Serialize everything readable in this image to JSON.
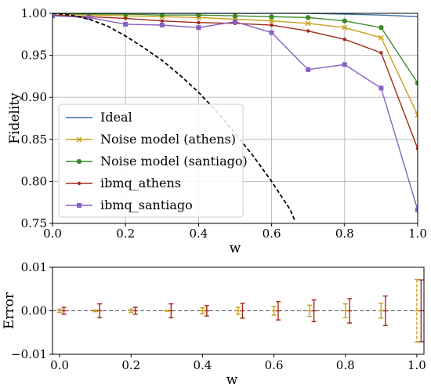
{
  "chart_data": [
    {
      "type": "line",
      "xlabel": "w",
      "ylabel": "Fidelity",
      "xlim": [
        0.0,
        1.0
      ],
      "ylim": [
        0.75,
        1.0
      ],
      "grid": true,
      "legend_position": "lower-left",
      "x_ticks": [
        "0.0",
        "0.2",
        "0.4",
        "0.6",
        "0.8",
        "1.0"
      ],
      "y_ticks": [
        "0.75",
        "0.80",
        "0.85",
        "0.90",
        "0.95",
        "1.00"
      ],
      "series": [
        {
          "name": "Ideal",
          "color": "#3a6fa8",
          "marker": "none",
          "x": [
            0.0,
            0.1,
            0.2,
            0.3,
            0.4,
            0.5,
            0.6,
            0.7,
            0.8,
            0.9,
            1.0
          ],
          "y": [
            1.0,
            1.0,
            1.0,
            1.0,
            1.0,
            1.0,
            1.0,
            1.0,
            0.999,
            0.998,
            0.996
          ]
        },
        {
          "name": "Noise model (athens)",
          "color": "#c8a018",
          "marker": "x",
          "x": [
            0.0,
            0.1,
            0.2,
            0.3,
            0.4,
            0.5,
            0.6,
            0.7,
            0.8,
            0.9,
            1.0
          ],
          "y": [
            1.0,
            0.998,
            0.997,
            0.996,
            0.995,
            0.993,
            0.991,
            0.988,
            0.983,
            0.971,
            0.879
          ]
        },
        {
          "name": "Noise model (santiago)",
          "color": "#3b8a2a",
          "marker": "circle",
          "x": [
            0.0,
            0.1,
            0.2,
            0.3,
            0.4,
            0.5,
            0.6,
            0.7,
            0.8,
            0.9,
            1.0
          ],
          "y": [
            1.0,
            0.999,
            0.999,
            0.998,
            0.998,
            0.997,
            0.996,
            0.995,
            0.991,
            0.983,
            0.917
          ]
        },
        {
          "name": "ibmq_athens",
          "color": "#a02a1a",
          "marker": "dot",
          "x": [
            0.0,
            0.1,
            0.2,
            0.3,
            0.4,
            0.5,
            0.6,
            0.7,
            0.8,
            0.9,
            1.0
          ],
          "y": [
            0.998,
            0.996,
            0.994,
            0.991,
            0.989,
            0.988,
            0.986,
            0.979,
            0.969,
            0.953,
            0.839
          ]
        },
        {
          "name": "ibmq_santiago",
          "color": "#8860c0",
          "marker": "square",
          "x": [
            0.0,
            0.1,
            0.2,
            0.3,
            0.4,
            0.5,
            0.6,
            0.7,
            0.8,
            0.9,
            1.0
          ],
          "y": [
            0.997,
            0.995,
            0.987,
            0.986,
            0.983,
            0.99,
            0.977,
            0.933,
            0.939,
            0.911,
            0.766
          ]
        },
        {
          "name": "",
          "color": "#000000",
          "marker": "none",
          "dashed": true,
          "x": [
            0.0,
            0.05,
            0.1,
            0.15,
            0.2,
            0.25,
            0.3,
            0.35,
            0.4,
            0.45,
            0.5,
            0.55,
            0.6,
            0.65,
            0.665
          ],
          "y": [
            1.0,
            0.998,
            0.993,
            0.985,
            0.973,
            0.959,
            0.944,
            0.926,
            0.906,
            0.883,
            0.857,
            0.83,
            0.8,
            0.767,
            0.752
          ]
        }
      ]
    },
    {
      "type": "errorbar",
      "xlabel": "w",
      "ylabel": "Error",
      "xlim": [
        -0.02,
        1.02
      ],
      "ylim": [
        -0.01,
        0.01
      ],
      "grid": false,
      "x_ticks": [
        "0.0",
        "0.2",
        "0.4",
        "0.6",
        "0.8",
        "1.0"
      ],
      "y_ticks": [
        "−0.01",
        "0.00",
        "0.01"
      ],
      "reference_line": 0.0,
      "series": [
        {
          "color": "#c8a018",
          "x": [
            0.0,
            0.1,
            0.2,
            0.3,
            0.4,
            0.5,
            0.6,
            0.7,
            0.8,
            0.9,
            1.0
          ],
          "y": [
            0,
            0,
            0,
            0,
            0,
            0,
            0,
            0,
            0,
            0,
            0
          ],
          "err": [
            0.0004,
            0.0002,
            0.0004,
            0.0001,
            0.0007,
            0.0008,
            0.001,
            0.0013,
            0.0016,
            0.0017,
            0.0072
          ]
        },
        {
          "color": "#a02a1a",
          "x": [
            0.0,
            0.1,
            0.2,
            0.3,
            0.4,
            0.5,
            0.6,
            0.7,
            0.8,
            0.9,
            1.0
          ],
          "y": [
            0,
            0,
            0,
            0,
            0,
            0,
            0,
            0,
            0,
            0,
            0
          ],
          "err": [
            0.0008,
            0.0016,
            0.0008,
            0.0016,
            0.0012,
            0.0017,
            0.0021,
            0.0025,
            0.0028,
            0.0034,
            0.0071
          ]
        }
      ]
    }
  ]
}
